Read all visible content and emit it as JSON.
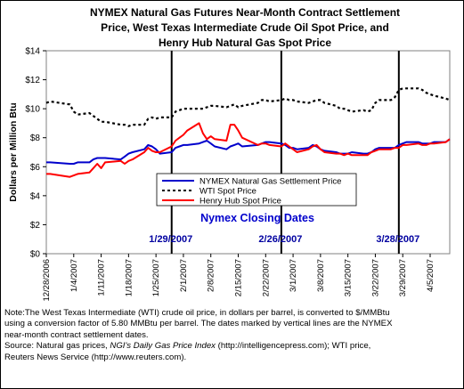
{
  "chart_data": {
    "type": "line",
    "title_lines": [
      "NYMEX Natural Gas Futures Near-Month Contract Settlement",
      "Price, West Texas Intermediate Crude Oil Spot Price, and",
      "Henry Hub Natural Gas Spot Price"
    ],
    "ylabel": "Dollars per Million Btu",
    "ylim": [
      0,
      14
    ],
    "yticks": [
      "$0",
      "$2",
      "$4",
      "$6",
      "$8",
      "$10",
      "$12",
      "$14"
    ],
    "xlim": [
      "2006-12-28",
      "2007-04-10"
    ],
    "xticks": [
      "12/28/2006",
      "1/4/2007",
      "1/11/2007",
      "1/18/2007",
      "1/25/2007",
      "2/1/2007",
      "2/8/2007",
      "2/15/2007",
      "2/22/2007",
      "3/1/2007",
      "3/8/2007",
      "3/15/2007",
      "3/22/2007",
      "3/29/2007",
      "4/5/2007"
    ],
    "grid": false,
    "legend_placement": "center-right",
    "annotation_title": "Nymex Closing Dates",
    "vertical_lines": [
      {
        "date": "2007-01-29",
        "label": "1/29/2007"
      },
      {
        "date": "2007-02-26",
        "label": "2/26/2007"
      },
      {
        "date": "2007-03-28",
        "label": "3/28/2007"
      }
    ],
    "series": [
      {
        "name": "NYMEX Natural Gas Settlement Price",
        "color": "#0000cc",
        "dash": "solid",
        "points": [
          [
            "2006-12-28",
            6.3
          ],
          [
            "2006-12-29",
            6.3
          ],
          [
            "2007-01-03",
            6.2
          ],
          [
            "2007-01-04",
            6.2
          ],
          [
            "2007-01-05",
            6.3
          ],
          [
            "2007-01-08",
            6.3
          ],
          [
            "2007-01-09",
            6.5
          ],
          [
            "2007-01-10",
            6.6
          ],
          [
            "2007-01-11",
            6.6
          ],
          [
            "2007-01-12",
            6.6
          ],
          [
            "2007-01-16",
            6.5
          ],
          [
            "2007-01-17",
            6.7
          ],
          [
            "2007-01-18",
            6.9
          ],
          [
            "2007-01-19",
            7.0
          ],
          [
            "2007-01-22",
            7.2
          ],
          [
            "2007-01-23",
            7.5
          ],
          [
            "2007-01-24",
            7.4
          ],
          [
            "2007-01-25",
            7.2
          ],
          [
            "2007-01-26",
            6.9
          ],
          [
            "2007-01-29",
            7.0
          ],
          [
            "2007-01-30",
            7.3
          ],
          [
            "2007-01-31",
            7.4
          ],
          [
            "2007-02-01",
            7.5
          ],
          [
            "2007-02-02",
            7.5
          ],
          [
            "2007-02-05",
            7.6
          ],
          [
            "2007-02-06",
            7.7
          ],
          [
            "2007-02-07",
            7.8
          ],
          [
            "2007-02-08",
            7.6
          ],
          [
            "2007-02-09",
            7.4
          ],
          [
            "2007-02-12",
            7.2
          ],
          [
            "2007-02-13",
            7.4
          ],
          [
            "2007-02-14",
            7.5
          ],
          [
            "2007-02-15",
            7.6
          ],
          [
            "2007-02-16",
            7.4
          ],
          [
            "2007-02-20",
            7.5
          ],
          [
            "2007-02-21",
            7.6
          ],
          [
            "2007-02-22",
            7.7
          ],
          [
            "2007-02-23",
            7.7
          ],
          [
            "2007-02-26",
            7.6
          ],
          [
            "2007-02-27",
            7.5
          ],
          [
            "2007-02-28",
            7.3
          ],
          [
            "2007-03-01",
            7.3
          ],
          [
            "2007-03-02",
            7.2
          ],
          [
            "2007-03-05",
            7.3
          ],
          [
            "2007-03-06",
            7.5
          ],
          [
            "2007-03-07",
            7.4
          ],
          [
            "2007-03-08",
            7.2
          ],
          [
            "2007-03-09",
            7.1
          ],
          [
            "2007-03-12",
            7.0
          ],
          [
            "2007-03-13",
            6.9
          ],
          [
            "2007-03-14",
            6.9
          ],
          [
            "2007-03-15",
            6.9
          ],
          [
            "2007-03-16",
            7.0
          ],
          [
            "2007-03-19",
            6.9
          ],
          [
            "2007-03-20",
            6.9
          ],
          [
            "2007-03-21",
            7.0
          ],
          [
            "2007-03-22",
            7.2
          ],
          [
            "2007-03-23",
            7.3
          ],
          [
            "2007-03-26",
            7.3
          ],
          [
            "2007-03-27",
            7.3
          ],
          [
            "2007-03-28",
            7.5
          ],
          [
            "2007-03-29",
            7.6
          ],
          [
            "2007-03-30",
            7.7
          ],
          [
            "2007-04-02",
            7.7
          ],
          [
            "2007-04-03",
            7.6
          ],
          [
            "2007-04-04",
            7.6
          ],
          [
            "2007-04-05",
            7.6
          ],
          [
            "2007-04-06",
            7.7
          ],
          [
            "2007-04-09",
            7.7
          ],
          [
            "2007-04-10",
            7.9
          ]
        ]
      },
      {
        "name": "WTI Spot Price",
        "color": "#000000",
        "dash": "dotted",
        "points": [
          [
            "2006-12-28",
            10.4
          ],
          [
            "2006-12-29",
            10.5
          ],
          [
            "2007-01-03",
            10.3
          ],
          [
            "2007-01-04",
            9.8
          ],
          [
            "2007-01-05",
            9.6
          ],
          [
            "2007-01-08",
            9.7
          ],
          [
            "2007-01-09",
            9.5
          ],
          [
            "2007-01-10",
            9.3
          ],
          [
            "2007-01-11",
            9.1
          ],
          [
            "2007-01-12",
            9.1
          ],
          [
            "2007-01-16",
            8.9
          ],
          [
            "2007-01-17",
            8.9
          ],
          [
            "2007-01-18",
            8.8
          ],
          [
            "2007-01-19",
            8.9
          ],
          [
            "2007-01-22",
            8.9
          ],
          [
            "2007-01-23",
            9.3
          ],
          [
            "2007-01-24",
            9.4
          ],
          [
            "2007-01-25",
            9.3
          ],
          [
            "2007-01-26",
            9.4
          ],
          [
            "2007-01-29",
            9.4
          ],
          [
            "2007-01-30",
            9.8
          ],
          [
            "2007-01-31",
            9.9
          ],
          [
            "2007-02-01",
            10.0
          ],
          [
            "2007-02-02",
            10.0
          ],
          [
            "2007-02-05",
            10.0
          ],
          [
            "2007-02-06",
            10.0
          ],
          [
            "2007-02-07",
            10.1
          ],
          [
            "2007-02-08",
            10.2
          ],
          [
            "2007-02-09",
            10.2
          ],
          [
            "2007-02-12",
            10.1
          ],
          [
            "2007-02-13",
            10.2
          ],
          [
            "2007-02-14",
            10.3
          ],
          [
            "2007-02-15",
            10.1
          ],
          [
            "2007-02-16",
            10.2
          ],
          [
            "2007-02-20",
            10.4
          ],
          [
            "2007-02-21",
            10.6
          ],
          [
            "2007-02-22",
            10.6
          ],
          [
            "2007-02-23",
            10.5
          ],
          [
            "2007-02-26",
            10.6
          ],
          [
            "2007-02-27",
            10.7
          ],
          [
            "2007-02-28",
            10.6
          ],
          [
            "2007-03-01",
            10.6
          ],
          [
            "2007-03-02",
            10.5
          ],
          [
            "2007-03-05",
            10.4
          ],
          [
            "2007-03-06",
            10.5
          ],
          [
            "2007-03-07",
            10.6
          ],
          [
            "2007-03-08",
            10.6
          ],
          [
            "2007-03-09",
            10.4
          ],
          [
            "2007-03-12",
            10.2
          ],
          [
            "2007-03-13",
            10.0
          ],
          [
            "2007-03-14",
            10.0
          ],
          [
            "2007-03-15",
            9.9
          ],
          [
            "2007-03-16",
            9.8
          ],
          [
            "2007-03-19",
            9.9
          ],
          [
            "2007-03-20",
            9.8
          ],
          [
            "2007-03-21",
            9.9
          ],
          [
            "2007-03-22",
            10.4
          ],
          [
            "2007-03-23",
            10.6
          ],
          [
            "2007-03-26",
            10.6
          ],
          [
            "2007-03-27",
            10.8
          ],
          [
            "2007-03-28",
            11.3
          ],
          [
            "2007-03-29",
            11.4
          ],
          [
            "2007-03-30",
            11.4
          ],
          [
            "2007-04-02",
            11.4
          ],
          [
            "2007-04-03",
            11.3
          ],
          [
            "2007-04-04",
            11.1
          ],
          [
            "2007-04-05",
            11.0
          ],
          [
            "2007-04-06",
            10.9
          ],
          [
            "2007-04-09",
            10.7
          ],
          [
            "2007-04-10",
            10.6
          ]
        ]
      },
      {
        "name": "Henry Hub Spot Price",
        "color": "#ff0000",
        "dash": "solid",
        "points": [
          [
            "2006-12-28",
            5.5
          ],
          [
            "2006-12-29",
            5.5
          ],
          [
            "2007-01-03",
            5.3
          ],
          [
            "2007-01-04",
            5.4
          ],
          [
            "2007-01-05",
            5.5
          ],
          [
            "2007-01-08",
            5.6
          ],
          [
            "2007-01-09",
            5.9
          ],
          [
            "2007-01-10",
            6.2
          ],
          [
            "2007-01-11",
            5.9
          ],
          [
            "2007-01-12",
            6.3
          ],
          [
            "2007-01-16",
            6.4
          ],
          [
            "2007-01-17",
            6.2
          ],
          [
            "2007-01-18",
            6.4
          ],
          [
            "2007-01-19",
            6.5
          ],
          [
            "2007-01-22",
            7.0
          ],
          [
            "2007-01-23",
            7.3
          ],
          [
            "2007-01-24",
            7.1
          ],
          [
            "2007-01-25",
            7.0
          ],
          [
            "2007-01-26",
            7.0
          ],
          [
            "2007-01-29",
            7.4
          ],
          [
            "2007-01-30",
            7.8
          ],
          [
            "2007-01-31",
            8.0
          ],
          [
            "2007-02-01",
            8.2
          ],
          [
            "2007-02-02",
            8.5
          ],
          [
            "2007-02-05",
            9.0
          ],
          [
            "2007-02-06",
            8.3
          ],
          [
            "2007-02-07",
            7.9
          ],
          [
            "2007-02-08",
            8.1
          ],
          [
            "2007-02-09",
            7.9
          ],
          [
            "2007-02-12",
            7.8
          ],
          [
            "2007-02-13",
            8.9
          ],
          [
            "2007-02-14",
            8.9
          ],
          [
            "2007-02-15",
            8.5
          ],
          [
            "2007-02-16",
            8.0
          ],
          [
            "2007-02-20",
            7.5
          ],
          [
            "2007-02-21",
            7.6
          ],
          [
            "2007-02-22",
            7.6
          ],
          [
            "2007-02-23",
            7.5
          ],
          [
            "2007-02-26",
            7.4
          ],
          [
            "2007-02-27",
            7.6
          ],
          [
            "2007-02-28",
            7.4
          ],
          [
            "2007-03-01",
            7.2
          ],
          [
            "2007-03-02",
            7.0
          ],
          [
            "2007-03-05",
            7.2
          ],
          [
            "2007-03-06",
            7.4
          ],
          [
            "2007-03-07",
            7.5
          ],
          [
            "2007-03-08",
            7.2
          ],
          [
            "2007-03-09",
            7.0
          ],
          [
            "2007-03-12",
            6.9
          ],
          [
            "2007-03-13",
            6.9
          ],
          [
            "2007-03-14",
            6.8
          ],
          [
            "2007-03-15",
            6.9
          ],
          [
            "2007-03-16",
            6.8
          ],
          [
            "2007-03-19",
            6.8
          ],
          [
            "2007-03-20",
            6.8
          ],
          [
            "2007-03-21",
            7.0
          ],
          [
            "2007-03-22",
            7.1
          ],
          [
            "2007-03-23",
            7.2
          ],
          [
            "2007-03-26",
            7.2
          ],
          [
            "2007-03-27",
            7.3
          ],
          [
            "2007-03-28",
            7.3
          ],
          [
            "2007-03-29",
            7.5
          ],
          [
            "2007-03-30",
            7.5
          ],
          [
            "2007-04-02",
            7.6
          ],
          [
            "2007-04-03",
            7.5
          ],
          [
            "2007-04-04",
            7.5
          ],
          [
            "2007-04-05",
            7.6
          ],
          [
            "2007-04-06",
            7.6
          ],
          [
            "2007-04-09",
            7.7
          ],
          [
            "2007-04-10",
            7.9
          ]
        ]
      }
    ]
  },
  "note": {
    "line1": "Note:The West Texas Intermediate (WTI) crude oil price, in dollars per barrel,  is converted to $/MMBtu",
    "line2": "using a conversion factor of 5.80 MMBtu per barrel.  The dates marked by vertical lines are the NYMEX",
    "line3": "near-month contract settlement dates.",
    "line4_prefix": "Source: Natural gas prices, ",
    "line4_italic": "NGI's Daily Gas Price Index",
    "line4_suffix": " (http://intelligencepress.com); WTI price,",
    "line5": "Reuters News Service (http://www.reuters.com)."
  }
}
